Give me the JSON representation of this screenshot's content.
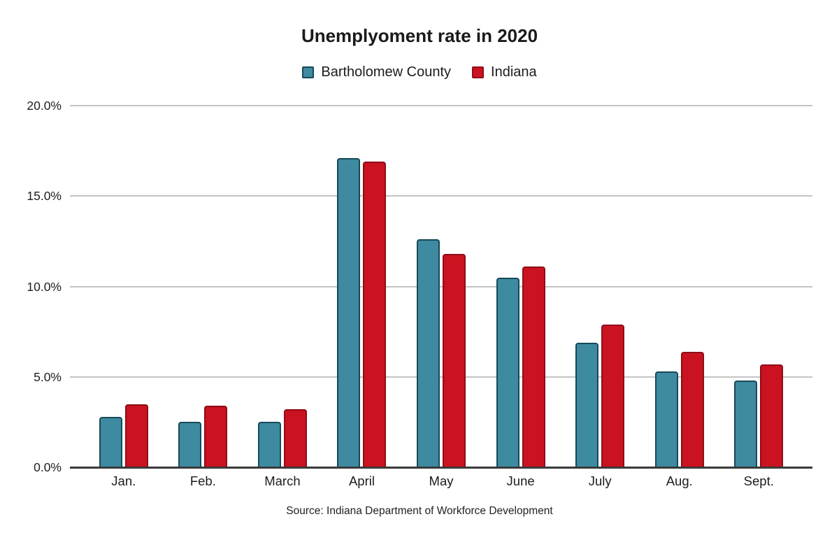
{
  "chart_data": {
    "type": "bar",
    "title": "Unemplyoment rate in 2020",
    "categories": [
      "Jan.",
      "Feb.",
      "March",
      "April",
      "May",
      "June",
      "July",
      "Aug.",
      "Sept."
    ],
    "series": [
      {
        "name": "Bartholomew County",
        "color": "#3e8aa0",
        "border_color": "#174a58",
        "values": [
          2.8,
          2.5,
          2.5,
          17.1,
          12.6,
          10.5,
          6.9,
          5.3,
          4.8
        ]
      },
      {
        "name": "Indiana",
        "color": "#cb1220",
        "border_color": "#8e0d17",
        "values": [
          3.5,
          3.4,
          3.2,
          16.9,
          11.8,
          11.1,
          7.9,
          6.4,
          5.7
        ]
      }
    ],
    "xlabel": "",
    "ylabel": "",
    "ylim": [
      0,
      20
    ],
    "yticks": [
      {
        "value": 0,
        "label": "0.0%"
      },
      {
        "value": 5,
        "label": "5.0%"
      },
      {
        "value": 10,
        "label": "10.0%"
      },
      {
        "value": 15,
        "label": "15.0%"
      },
      {
        "value": 20,
        "label": "20.0%"
      }
    ],
    "grid": true,
    "legend_position": "top",
    "source_note": "Source: Indiana Department of Workforce Development",
    "colors": {
      "background": "#ffffff",
      "gridline": "#c4c4c4",
      "axis_line": "#3a3a3a",
      "text": "#1c1c1c"
    }
  }
}
